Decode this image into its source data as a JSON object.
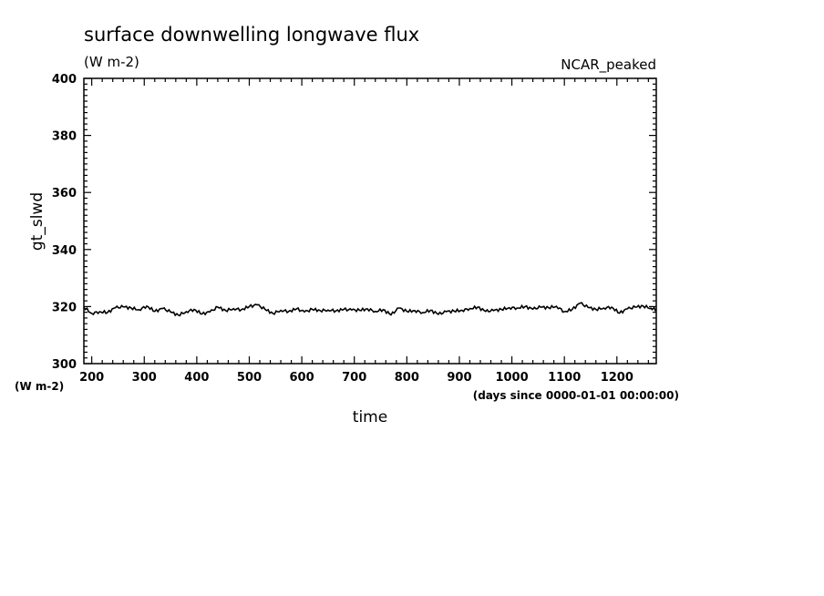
{
  "chart_data": {
    "type": "line",
    "title": "surface downwelling longwave flux",
    "units_label": "(W m-2)",
    "annotation": "NCAR_peaked",
    "xlabel": "time",
    "x_units": "(days since 0000-01-01 00:00:00)",
    "ylabel": "gt_slwd",
    "y_units": "(W m-2)",
    "xlim": [
      185,
      1275
    ],
    "ylim": [
      300,
      400
    ],
    "x_ticks": [
      200,
      300,
      400,
      500,
      600,
      700,
      800,
      900,
      1000,
      1100,
      1200
    ],
    "y_ticks": [
      300,
      320,
      340,
      360,
      380,
      400
    ],
    "grid": false,
    "series": [
      {
        "color": "#000000",
        "x": [
          185,
          200,
          215,
          230,
          245,
          260,
          275,
          290,
          305,
          320,
          335,
          350,
          365,
          380,
          395,
          410,
          425,
          440,
          455,
          470,
          485,
          500,
          515,
          530,
          545,
          560,
          575,
          590,
          605,
          620,
          635,
          650,
          665,
          680,
          695,
          710,
          725,
          740,
          755,
          770,
          785,
          800,
          815,
          830,
          845,
          860,
          875,
          890,
          905,
          920,
          935,
          950,
          965,
          980,
          995,
          1010,
          1025,
          1040,
          1055,
          1070,
          1085,
          1100,
          1115,
          1130,
          1145,
          1160,
          1175,
          1190,
          1205,
          1220,
          1235,
          1250,
          1265,
          1275
        ],
        "y": [
          319.8,
          317.6,
          318.2,
          317.9,
          319.6,
          319.9,
          319.5,
          318.9,
          320.2,
          318.3,
          319.3,
          318.1,
          317.0,
          318.2,
          319.0,
          317.4,
          318.1,
          319.8,
          318.6,
          319.3,
          318.9,
          320.0,
          320.6,
          319.0,
          317.6,
          318.7,
          318.3,
          319.2,
          318.1,
          319.0,
          318.6,
          318.8,
          318.5,
          319.0,
          318.8,
          318.7,
          319.2,
          318.3,
          318.9,
          317.1,
          319.5,
          318.3,
          318.6,
          317.9,
          318.7,
          317.3,
          318.2,
          318.4,
          318.7,
          319.3,
          319.8,
          318.3,
          318.6,
          319.0,
          319.6,
          319.5,
          320.0,
          319.1,
          319.8,
          319.6,
          320.1,
          318.2,
          319.0,
          321.2,
          319.7,
          319.0,
          319.5,
          319.8,
          317.7,
          319.2,
          319.8,
          320.2,
          319.4,
          319.1
        ]
      }
    ]
  }
}
